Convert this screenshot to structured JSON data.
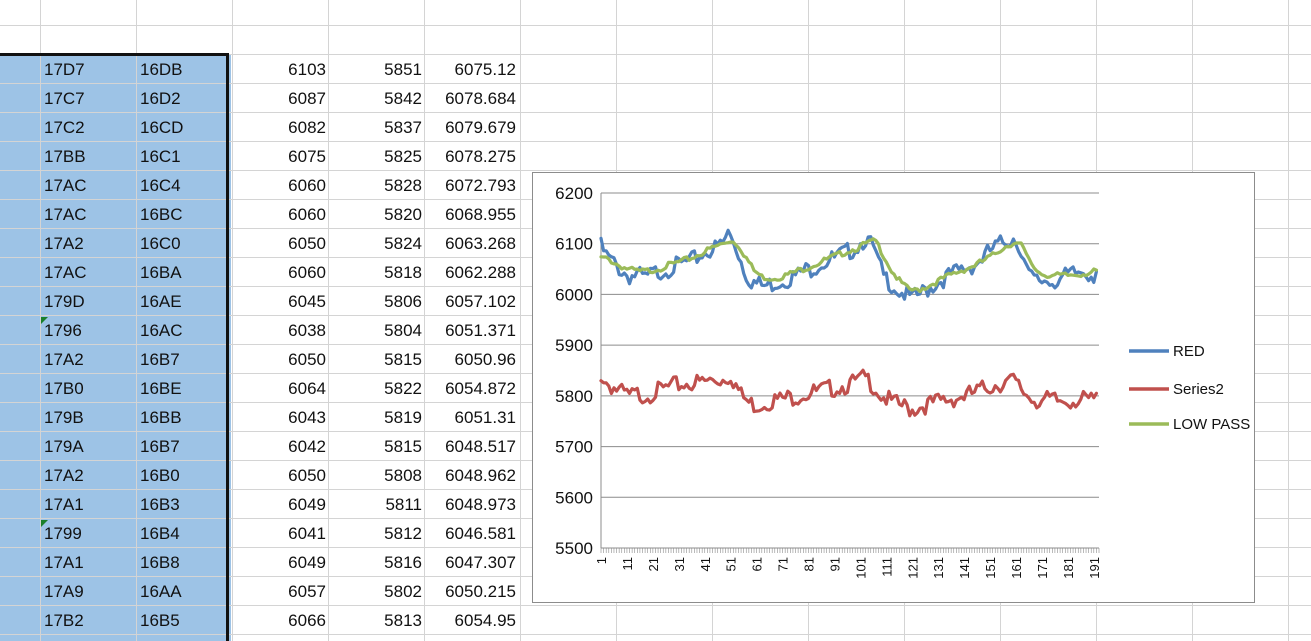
{
  "spreadsheet": {
    "rows": [
      {
        "c1": "17D7",
        "c2": "16DB",
        "c3": "6103",
        "c4": "5851",
        "c5": "6075.12",
        "flag": false
      },
      {
        "c1": "17C7",
        "c2": "16D2",
        "c3": "6087",
        "c4": "5842",
        "c5": "6078.684",
        "flag": false
      },
      {
        "c1": "17C2",
        "c2": "16CD",
        "c3": "6082",
        "c4": "5837",
        "c5": "6079.679",
        "flag": false
      },
      {
        "c1": "17BB",
        "c2": "16C1",
        "c3": "6075",
        "c4": "5825",
        "c5": "6078.275",
        "flag": false
      },
      {
        "c1": "17AC",
        "c2": "16C4",
        "c3": "6060",
        "c4": "5828",
        "c5": "6072.793",
        "flag": false
      },
      {
        "c1": "17AC",
        "c2": "16BC",
        "c3": "6060",
        "c4": "5820",
        "c5": "6068.955",
        "flag": false
      },
      {
        "c1": "17A2",
        "c2": "16C0",
        "c3": "6050",
        "c4": "5824",
        "c5": "6063.268",
        "flag": false
      },
      {
        "c1": "17AC",
        "c2": "16BA",
        "c3": "6060",
        "c4": "5818",
        "c5": "6062.288",
        "flag": false
      },
      {
        "c1": "179D",
        "c2": "16AE",
        "c3": "6045",
        "c4": "5806",
        "c5": "6057.102",
        "flag": false
      },
      {
        "c1": "1796",
        "c2": "16AC",
        "c3": "6038",
        "c4": "5804",
        "c5": "6051.371",
        "flag": true
      },
      {
        "c1": "17A2",
        "c2": "16B7",
        "c3": "6050",
        "c4": "5815",
        "c5": "6050.96",
        "flag": false
      },
      {
        "c1": "17B0",
        "c2": "16BE",
        "c3": "6064",
        "c4": "5822",
        "c5": "6054.872",
        "flag": false
      },
      {
        "c1": "179B",
        "c2": "16BB",
        "c3": "6043",
        "c4": "5819",
        "c5": "6051.31",
        "flag": false
      },
      {
        "c1": "179A",
        "c2": "16B7",
        "c3": "6042",
        "c4": "5815",
        "c5": "6048.517",
        "flag": false
      },
      {
        "c1": "17A2",
        "c2": "16B0",
        "c3": "6050",
        "c4": "5808",
        "c5": "6048.962",
        "flag": false
      },
      {
        "c1": "17A1",
        "c2": "16B3",
        "c3": "6049",
        "c4": "5811",
        "c5": "6048.973",
        "flag": false
      },
      {
        "c1": "1799",
        "c2": "16B4",
        "c3": "6041",
        "c4": "5812",
        "c5": "6046.581",
        "flag": true
      },
      {
        "c1": "17A1",
        "c2": "16B8",
        "c3": "6049",
        "c4": "5816",
        "c5": "6047.307",
        "flag": false
      },
      {
        "c1": "17A9",
        "c2": "16AA",
        "c3": "6057",
        "c4": "5802",
        "c5": "6050.215",
        "flag": false
      },
      {
        "c1": "17B2",
        "c2": "16B5",
        "c3": "6066",
        "c4": "5813",
        "c5": "6054.95",
        "flag": false
      }
    ]
  },
  "chart_data": {
    "type": "line",
    "title": "",
    "xlabel": "",
    "ylabel": "",
    "ylim": [
      5500,
      6200
    ],
    "yticks": [
      "5500",
      "5600",
      "5700",
      "5800",
      "5900",
      "6000",
      "6100",
      "6200"
    ],
    "xticks": [
      "1",
      "11",
      "21",
      "31",
      "41",
      "51",
      "61",
      "71",
      "81",
      "91",
      "101",
      "111",
      "121",
      "131",
      "141",
      "151",
      "161",
      "171",
      "181",
      "191"
    ],
    "xrange": [
      1,
      193
    ],
    "grid": true,
    "legend_position": "right",
    "series": [
      {
        "name": "RED",
        "color": "#4f81bd",
        "points": [
          [
            1,
            6103
          ],
          [
            3,
            6085
          ],
          [
            6,
            6070
          ],
          [
            9,
            6055
          ],
          [
            12,
            6045
          ],
          [
            15,
            6048
          ],
          [
            18,
            6040
          ],
          [
            21,
            6050
          ],
          [
            24,
            6055
          ],
          [
            27,
            6060
          ],
          [
            30,
            6065
          ],
          [
            33,
            6070
          ],
          [
            36,
            6075
          ],
          [
            39,
            6085
          ],
          [
            42,
            6095
          ],
          [
            45,
            6100
          ],
          [
            48,
            6110
          ],
          [
            50,
            6130
          ],
          [
            52,
            6115
          ],
          [
            54,
            6090
          ],
          [
            56,
            6060
          ],
          [
            58,
            6040
          ],
          [
            61,
            6030
          ],
          [
            64,
            6025
          ],
          [
            67,
            6030
          ],
          [
            70,
            6035
          ],
          [
            73,
            6040
          ],
          [
            76,
            6045
          ],
          [
            79,
            6055
          ],
          [
            82,
            6060
          ],
          [
            85,
            6068
          ],
          [
            88,
            6075
          ],
          [
            91,
            6080
          ],
          [
            94,
            6088
          ],
          [
            97,
            6095
          ],
          [
            100,
            6105
          ],
          [
            103,
            6120
          ],
          [
            106,
            6100
          ],
          [
            108,
            6070
          ],
          [
            110,
            6045
          ],
          [
            113,
            6030
          ],
          [
            116,
            6015
          ],
          [
            119,
            6008
          ],
          [
            121,
            6000
          ],
          [
            124,
            6010
          ],
          [
            127,
            6020
          ],
          [
            130,
            6030
          ],
          [
            133,
            6040
          ],
          [
            136,
            6048
          ],
          [
            139,
            6055
          ],
          [
            142,
            6062
          ],
          [
            145,
            6068
          ],
          [
            148,
            6080
          ],
          [
            151,
            6095
          ],
          [
            154,
            6105
          ],
          [
            157,
            6115
          ],
          [
            160,
            6120
          ],
          [
            162,
            6110
          ],
          [
            164,
            6075
          ],
          [
            166,
            6045
          ],
          [
            169,
            6035
          ],
          [
            172,
            6038
          ],
          [
            175,
            6035
          ],
          [
            178,
            6040
          ],
          [
            181,
            6045
          ],
          [
            184,
            6050
          ],
          [
            187,
            6055
          ],
          [
            190,
            6050
          ],
          [
            192,
            6045
          ]
        ]
      },
      {
        "name": "Series2",
        "color": "#c0504d",
        "points": [
          [
            1,
            5851
          ],
          [
            3,
            5835
          ],
          [
            6,
            5825
          ],
          [
            9,
            5815
          ],
          [
            12,
            5808
          ],
          [
            15,
            5812
          ],
          [
            18,
            5810
          ],
          [
            21,
            5815
          ],
          [
            24,
            5820
          ],
          [
            27,
            5825
          ],
          [
            30,
            5830
          ],
          [
            33,
            5832
          ],
          [
            36,
            5835
          ],
          [
            39,
            5835
          ],
          [
            42,
            5838
          ],
          [
            45,
            5840
          ],
          [
            48,
            5842
          ],
          [
            51,
            5850
          ],
          [
            53,
            5830
          ],
          [
            55,
            5810
          ],
          [
            58,
            5795
          ],
          [
            61,
            5790
          ],
          [
            64,
            5795
          ],
          [
            67,
            5800
          ],
          [
            70,
            5802
          ],
          [
            73,
            5805
          ],
          [
            76,
            5808
          ],
          [
            79,
            5812
          ],
          [
            82,
            5815
          ],
          [
            85,
            5818
          ],
          [
            88,
            5822
          ],
          [
            91,
            5825
          ],
          [
            94,
            5828
          ],
          [
            97,
            5832
          ],
          [
            100,
            5838
          ],
          [
            103,
            5845
          ],
          [
            106,
            5830
          ],
          [
            109,
            5810
          ],
          [
            112,
            5800
          ],
          [
            115,
            5792
          ],
          [
            118,
            5788
          ],
          [
            121,
            5782
          ],
          [
            124,
            5788
          ],
          [
            127,
            5792
          ],
          [
            130,
            5796
          ],
          [
            133,
            5800
          ],
          [
            136,
            5803
          ],
          [
            139,
            5806
          ],
          [
            142,
            5810
          ],
          [
            145,
            5815
          ],
          [
            148,
            5822
          ],
          [
            151,
            5828
          ],
          [
            154,
            5832
          ],
          [
            157,
            5836
          ],
          [
            160,
            5838
          ],
          [
            163,
            5822
          ],
          [
            166,
            5808
          ],
          [
            169,
            5800
          ],
          [
            172,
            5800
          ],
          [
            175,
            5800
          ],
          [
            178,
            5798
          ],
          [
            181,
            5800
          ],
          [
            184,
            5802
          ],
          [
            187,
            5800
          ],
          [
            190,
            5800
          ],
          [
            192,
            5805
          ]
        ]
      },
      {
        "name": "LOW PASS",
        "color": "#9bbb59",
        "points": [
          [
            1,
            6075
          ],
          [
            4,
            6072
          ],
          [
            8,
            6060
          ],
          [
            12,
            6052
          ],
          [
            16,
            6048
          ],
          [
            20,
            6050
          ],
          [
            24,
            6055
          ],
          [
            28,
            6062
          ],
          [
            32,
            6068
          ],
          [
            36,
            6075
          ],
          [
            40,
            6085
          ],
          [
            44,
            6095
          ],
          [
            48,
            6103
          ],
          [
            51,
            6110
          ],
          [
            54,
            6100
          ],
          [
            57,
            6075
          ],
          [
            60,
            6050
          ],
          [
            63,
            6038
          ],
          [
            66,
            6035
          ],
          [
            69,
            6036
          ],
          [
            72,
            6040
          ],
          [
            76,
            6048
          ],
          [
            80,
            6055
          ],
          [
            84,
            6063
          ],
          [
            88,
            6072
          ],
          [
            92,
            6080
          ],
          [
            96,
            6088
          ],
          [
            100,
            6095
          ],
          [
            104,
            6105
          ],
          [
            107,
            6108
          ],
          [
            110,
            6080
          ],
          [
            113,
            6050
          ],
          [
            116,
            6030
          ],
          [
            119,
            6015
          ],
          [
            122,
            6010
          ],
          [
            125,
            6015
          ],
          [
            128,
            6022
          ],
          [
            132,
            6032
          ],
          [
            136,
            6042
          ],
          [
            140,
            6050
          ],
          [
            144,
            6058
          ],
          [
            148,
            6068
          ],
          [
            152,
            6080
          ],
          [
            156,
            6095
          ],
          [
            160,
            6105
          ],
          [
            163,
            6100
          ],
          [
            166,
            6070
          ],
          [
            169,
            6050
          ],
          [
            172,
            6042
          ],
          [
            176,
            6040
          ],
          [
            180,
            6040
          ],
          [
            184,
            6042
          ],
          [
            188,
            6045
          ],
          [
            192,
            6048
          ]
        ]
      }
    ]
  }
}
